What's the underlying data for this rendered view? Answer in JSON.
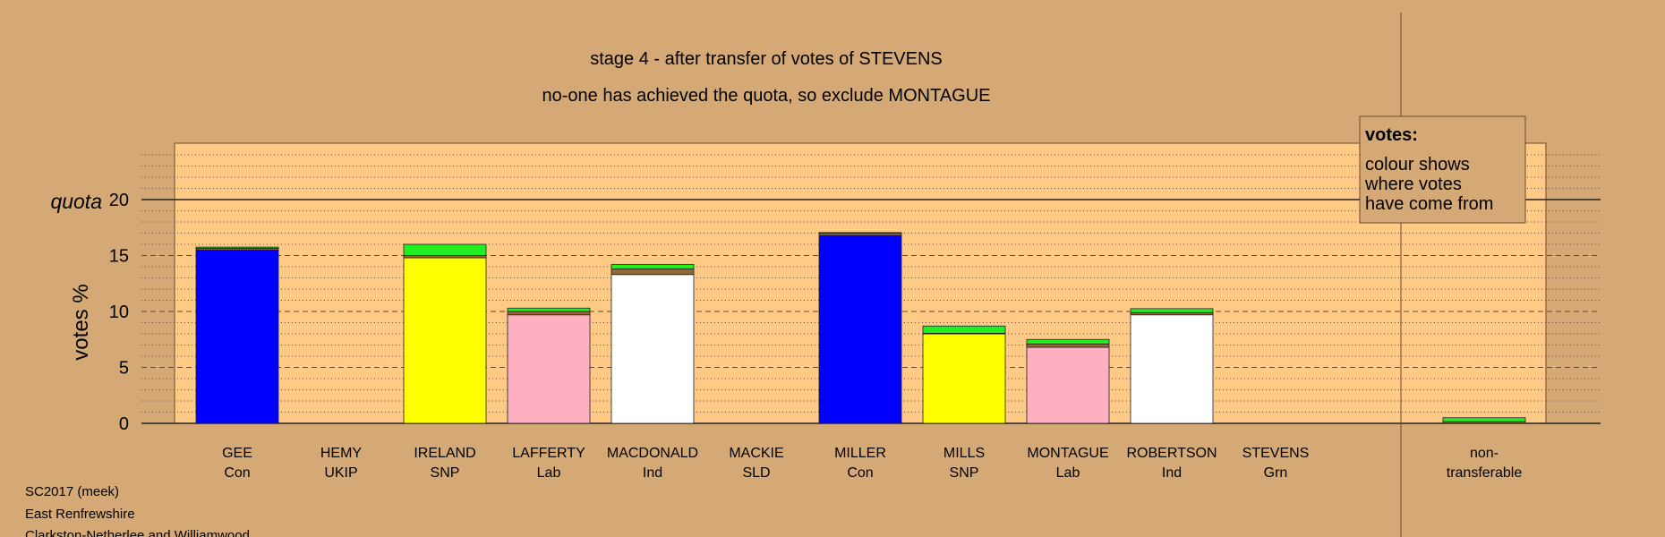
{
  "title": "stage 4 - after transfer of votes of STEVENS",
  "subtitle": "no-one has achieved the quota, so exclude MONTAGUE",
  "ylabel": "votes %",
  "quota_label": "quota",
  "legend": {
    "heading": "votes:",
    "lines": [
      "colour shows",
      "where votes",
      "have come from"
    ]
  },
  "footer": [
    "SC2017 (meek)",
    "East Renfrewshire",
    "Clarkston-Netherlee and Williamwood"
  ],
  "colors": {
    "background": "#d4a976",
    "plot_area": "#ffc986",
    "Con": "#0000ff",
    "SNP": "#ffff00",
    "Lab": "#ffb0c0",
    "Ind": "#ffffff",
    "Grn_transfer": "#22ee22",
    "other_transfer": "#996633"
  },
  "chart_data": {
    "type": "bar",
    "stacked": true,
    "ylim": [
      0,
      25
    ],
    "yticks": [
      0,
      5,
      10,
      15,
      20
    ],
    "quota": 20,
    "grid": "dotted at 1, dashed at 5",
    "legend_position": "top-right",
    "categories": [
      {
        "name": "GEE",
        "party": "Con"
      },
      {
        "name": "HEMY",
        "party": "UKIP"
      },
      {
        "name": "IRELAND",
        "party": "SNP"
      },
      {
        "name": "LAFFERTY",
        "party": "Lab"
      },
      {
        "name": "MACDONALD",
        "party": "Ind"
      },
      {
        "name": "MACKIE",
        "party": "SLD"
      },
      {
        "name": "MILLER",
        "party": "Con"
      },
      {
        "name": "MILLS",
        "party": "SNP"
      },
      {
        "name": "MONTAGUE",
        "party": "Lab"
      },
      {
        "name": "ROBERTSON",
        "party": "Ind"
      },
      {
        "name": "STEVENS",
        "party": "Grn"
      },
      {
        "name": "non-",
        "party": "transferable"
      }
    ],
    "bars": [
      [
        {
          "v": 15.5,
          "c": "Con"
        },
        {
          "v": 0.15,
          "c": "other_transfer"
        },
        {
          "v": 0.1,
          "c": "Grn_transfer"
        }
      ],
      [],
      [
        {
          "v": 14.8,
          "c": "SNP"
        },
        {
          "v": 0.2,
          "c": "other_transfer"
        },
        {
          "v": 1.0,
          "c": "Grn_transfer"
        }
      ],
      [
        {
          "v": 9.7,
          "c": "Lab"
        },
        {
          "v": 0.3,
          "c": "other_transfer"
        },
        {
          "v": 0.3,
          "c": "Grn_transfer"
        }
      ],
      [
        {
          "v": 13.3,
          "c": "Ind"
        },
        {
          "v": 0.5,
          "c": "other_transfer"
        },
        {
          "v": 0.4,
          "c": "Grn_transfer"
        }
      ],
      [],
      [
        {
          "v": 16.8,
          "c": "Con"
        },
        {
          "v": 0.2,
          "c": "other_transfer"
        },
        {
          "v": 0.05,
          "c": "Grn_transfer"
        }
      ],
      [
        {
          "v": 8.0,
          "c": "SNP"
        },
        {
          "v": 0.05,
          "c": "other_transfer"
        },
        {
          "v": 0.65,
          "c": "Grn_transfer"
        }
      ],
      [
        {
          "v": 6.8,
          "c": "Lab"
        },
        {
          "v": 0.3,
          "c": "other_transfer"
        },
        {
          "v": 0.4,
          "c": "Grn_transfer"
        }
      ],
      [
        {
          "v": 9.7,
          "c": "Ind"
        },
        {
          "v": 0.2,
          "c": "other_transfer"
        },
        {
          "v": 0.35,
          "c": "Grn_transfer"
        }
      ],
      [],
      [
        {
          "v": 0.15,
          "c": "other_transfer"
        },
        {
          "v": 0.35,
          "c": "Grn_transfer"
        }
      ]
    ]
  }
}
